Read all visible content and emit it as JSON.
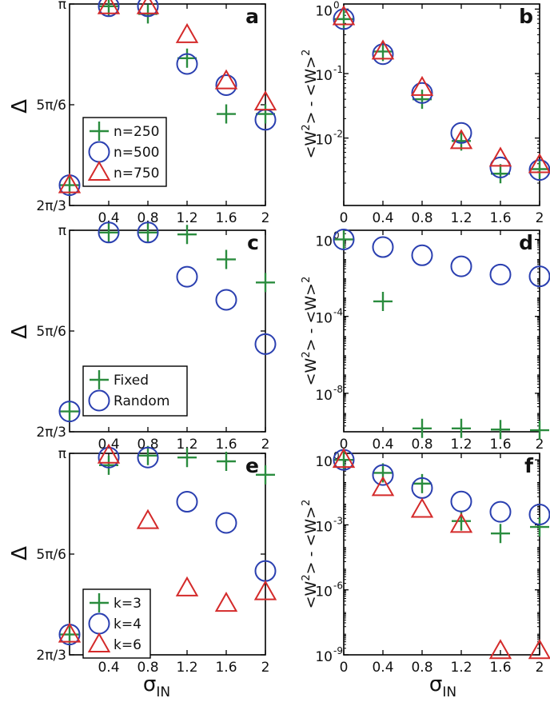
{
  "figure": {
    "x_axis_title": "σ",
    "x_axis_title_sub": "IN",
    "left_ylabel": "Δ",
    "right_ylabel_parts": [
      "<W",
      "2",
      "> - <W>",
      "2"
    ]
  },
  "colors": {
    "green": "#2a8c3e",
    "blue": "#2a3fb0",
    "red": "#d42a2a",
    "axis": "#000000"
  },
  "chart_data": [
    {
      "panel": "a",
      "type": "scatter",
      "yscale": "linear",
      "xlim": [
        0,
        2
      ],
      "ylim": [
        2.0944,
        3.1416
      ],
      "xticks": [
        0.4,
        0.8,
        1.2,
        1.6,
        2
      ],
      "xticklabels": [
        "0.4",
        "0.8",
        "1.2",
        "1.6",
        "2"
      ],
      "yticks": [
        2.0944,
        2.618,
        3.1416
      ],
      "yticklabels": [
        "2π/3",
        "5π/6",
        "π"
      ],
      "legend": {
        "position": "bottom-left"
      },
      "series": [
        {
          "name": "n=250",
          "marker": "plus",
          "color": "#2a8c3e",
          "x": [
            0,
            0.4,
            0.8,
            1.2,
            1.6,
            2
          ],
          "y": [
            2.2,
            3.13,
            3.09,
            2.86,
            2.57,
            2.57
          ]
        },
        {
          "name": "n=500",
          "marker": "circle",
          "color": "#2a3fb0",
          "x": [
            0,
            0.4,
            0.8,
            1.2,
            1.6,
            2
          ],
          "y": [
            2.2,
            3.13,
            3.13,
            2.83,
            2.72,
            2.54
          ]
        },
        {
          "name": "n=750",
          "marker": "triangle",
          "color": "#d42a2a",
          "x": [
            0,
            0.4,
            0.8,
            1.2,
            1.6,
            2
          ],
          "y": [
            2.2,
            3.13,
            3.13,
            2.98,
            2.74,
            2.63
          ]
        }
      ]
    },
    {
      "panel": "b",
      "type": "scatter",
      "yscale": "log",
      "xlim": [
        0,
        2
      ],
      "ylim": [
        0.0009,
        1.2
      ],
      "xticks": [
        0,
        0.4,
        0.8,
        1.2,
        1.6,
        2
      ],
      "xticklabels": [
        "0",
        "0.4",
        "0.8",
        "1.2",
        "1.6",
        "2"
      ],
      "yticks": [
        1,
        0.1,
        0.01
      ],
      "yticklabels": [
        "10",
        "10",
        "10"
      ],
      "ytickexps": [
        "0",
        "-1",
        "-2"
      ],
      "series": [
        {
          "marker": "plus",
          "color": "#2a8c3e",
          "x": [
            0,
            0.4,
            0.8,
            1.2,
            1.6,
            2
          ],
          "y": [
            0.7,
            0.22,
            0.04,
            0.009,
            0.0028,
            0.0033
          ]
        },
        {
          "marker": "circle",
          "color": "#2a3fb0",
          "x": [
            0,
            0.4,
            0.8,
            1.2,
            1.6,
            2
          ],
          "y": [
            0.7,
            0.2,
            0.05,
            0.012,
            0.0035,
            0.0032
          ]
        },
        {
          "marker": "triangle",
          "color": "#d42a2a",
          "x": [
            0,
            0.4,
            0.8,
            1.2,
            1.6,
            2
          ],
          "y": [
            0.75,
            0.22,
            0.06,
            0.009,
            0.0048,
            0.0038
          ]
        }
      ]
    },
    {
      "panel": "c",
      "type": "scatter",
      "yscale": "linear",
      "xlim": [
        0,
        2
      ],
      "ylim": [
        2.0944,
        3.1416
      ],
      "xticks": [
        0.4,
        0.8,
        1.2,
        1.6,
        2
      ],
      "xticklabels": [
        "0.4",
        "0.8",
        "1.2",
        "1.6",
        "2"
      ],
      "yticks": [
        2.0944,
        2.618,
        3.1416
      ],
      "yticklabels": [
        "2π/3",
        "5π/6",
        "π"
      ],
      "legend": {
        "position": "bottom-left"
      },
      "series": [
        {
          "name": "Fixed",
          "marker": "plus",
          "color": "#2a8c3e",
          "x": [
            0,
            0.4,
            0.8,
            1.2,
            1.6,
            2
          ],
          "y": [
            2.2,
            3.13,
            3.13,
            3.12,
            2.99,
            2.87
          ]
        },
        {
          "name": "Random",
          "marker": "circle",
          "color": "#2a3fb0",
          "x": [
            0,
            0.4,
            0.8,
            1.2,
            1.6,
            2
          ],
          "y": [
            2.2,
            3.13,
            3.13,
            2.9,
            2.78,
            2.55
          ]
        }
      ]
    },
    {
      "panel": "d",
      "type": "scatter",
      "yscale": "log",
      "xlim": [
        0,
        2
      ],
      "ylim": [
        1e-10,
        3
      ],
      "xticks": [
        0,
        0.4,
        0.8,
        1.2,
        1.6,
        2
      ],
      "xticklabels": [
        "0",
        "0.4",
        "0.8",
        "1.2",
        "1.6",
        "2"
      ],
      "yticks": [
        1,
        0.0001,
        1e-08
      ],
      "yticklabels": [
        "10",
        "10",
        "10"
      ],
      "ytickexps": [
        "0",
        "-4",
        "-8"
      ],
      "series": [
        {
          "marker": "plus",
          "color": "#2a8c3e",
          "x": [
            0,
            0.4,
            0.8,
            1.2,
            1.6,
            2
          ],
          "y": [
            1,
            0.0006,
            1.5e-10,
            1.5e-10,
            1.3e-10,
            1.2e-10
          ]
        },
        {
          "marker": "circle",
          "color": "#2a3fb0",
          "x": [
            0,
            0.4,
            0.8,
            1.2,
            1.6,
            2
          ],
          "y": [
            1,
            0.4,
            0.15,
            0.04,
            0.015,
            0.012
          ]
        }
      ]
    },
    {
      "panel": "e",
      "type": "scatter",
      "yscale": "linear",
      "xlim": [
        0,
        2
      ],
      "ylim": [
        2.0944,
        3.1416
      ],
      "xticks": [
        0.4,
        0.8,
        1.2,
        1.6,
        2
      ],
      "xticklabels": [
        "0.4",
        "0.8",
        "1.2",
        "1.6",
        "2"
      ],
      "yticks": [
        2.0944,
        2.618,
        3.1416
      ],
      "yticklabels": [
        "2π/3",
        "5π/6",
        "π"
      ],
      "legend": {
        "position": "bottom-left"
      },
      "series": [
        {
          "name": "k=3",
          "marker": "plus",
          "color": "#2a8c3e",
          "x": [
            0,
            0.4,
            0.8,
            1.2,
            1.6,
            2
          ],
          "y": [
            2.2,
            3.08,
            3.13,
            3.12,
            3.1,
            3.03
          ]
        },
        {
          "name": "k=4",
          "marker": "circle",
          "color": "#2a3fb0",
          "x": [
            0,
            0.4,
            0.8,
            1.2,
            1.6,
            2
          ],
          "y": [
            2.2,
            3.12,
            3.12,
            2.89,
            2.78,
            2.53
          ]
        },
        {
          "name": "k=6",
          "marker": "triangle",
          "color": "#d42a2a",
          "x": [
            0,
            0.4,
            0.8,
            1.2,
            1.6,
            2
          ],
          "y": [
            2.2,
            3.13,
            2.79,
            2.44,
            2.36,
            2.42
          ]
        }
      ]
    },
    {
      "panel": "f",
      "type": "scatter",
      "yscale": "log",
      "xlim": [
        0,
        2
      ],
      "ylim": [
        1e-09,
        2
      ],
      "xticks": [
        0,
        0.4,
        0.8,
        1.2,
        1.6,
        2
      ],
      "xticklabels": [
        "0",
        "0.4",
        "0.8",
        "1.2",
        "1.6",
        "2"
      ],
      "yticks": [
        1,
        0.001,
        1e-06,
        1e-09
      ],
      "yticklabels": [
        "10",
        "10",
        "10",
        "10"
      ],
      "ytickexps": [
        "0",
        "-3",
        "-6",
        "-9"
      ],
      "series": [
        {
          "marker": "plus",
          "color": "#2a8c3e",
          "x": [
            0,
            0.4,
            0.8,
            1.2,
            1.6,
            2
          ],
          "y": [
            1,
            0.25,
            0.08,
            0.0015,
            0.0004,
            0.0008
          ]
        },
        {
          "marker": "circle",
          "color": "#2a3fb0",
          "x": [
            0,
            0.4,
            0.8,
            1.2,
            1.6,
            2
          ],
          "y": [
            1,
            0.2,
            0.05,
            0.012,
            0.004,
            0.003
          ]
        },
        {
          "marker": "triangle",
          "color": "#d42a2a",
          "x": [
            0,
            0.4,
            0.8,
            1.2,
            1.6,
            2
          ],
          "y": [
            1,
            0.05,
            0.005,
            0.001,
            1.5e-09,
            1.5e-09
          ]
        }
      ]
    }
  ]
}
